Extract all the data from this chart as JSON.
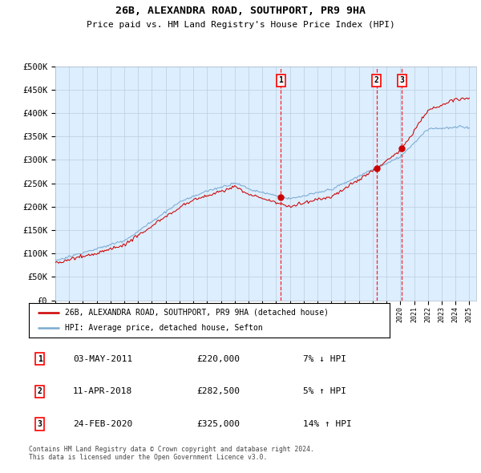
{
  "title": "26B, ALEXANDRA ROAD, SOUTHPORT, PR9 9HA",
  "subtitle": "Price paid vs. HM Land Registry's House Price Index (HPI)",
  "ylim": [
    0,
    500000
  ],
  "yticks": [
    0,
    50000,
    100000,
    150000,
    200000,
    250000,
    300000,
    350000,
    400000,
    450000,
    500000
  ],
  "ytick_labels": [
    "£0",
    "£50K",
    "£100K",
    "£150K",
    "£200K",
    "£250K",
    "£300K",
    "£350K",
    "£400K",
    "£450K",
    "£500K"
  ],
  "hpi_color": "#7aaad0",
  "price_color": "#cc0000",
  "bg_color": "#ddeeff",
  "sale_year_floats": [
    2011.336,
    2018.276,
    2020.124
  ],
  "sale_prices": [
    220000,
    282500,
    325000
  ],
  "sale_labels": [
    "1",
    "2",
    "3"
  ],
  "sale_info": [
    {
      "label": "1",
      "date": "03-MAY-2011",
      "price": "£220,000",
      "change": "7% ↓ HPI"
    },
    {
      "label": "2",
      "date": "11-APR-2018",
      "price": "£282,500",
      "change": "5% ↑ HPI"
    },
    {
      "label": "3",
      "date": "24-FEB-2020",
      "price": "£325,000",
      "change": "14% ↑ HPI"
    }
  ],
  "legend_entries": [
    "26B, ALEXANDRA ROAD, SOUTHPORT, PR9 9HA (detached house)",
    "HPI: Average price, detached house, Sefton"
  ],
  "footer": "Contains HM Land Registry data © Crown copyright and database right 2024.\nThis data is licensed under the Open Government Licence v3.0.",
  "xstart_year": 1995,
  "xend_year": 2025
}
